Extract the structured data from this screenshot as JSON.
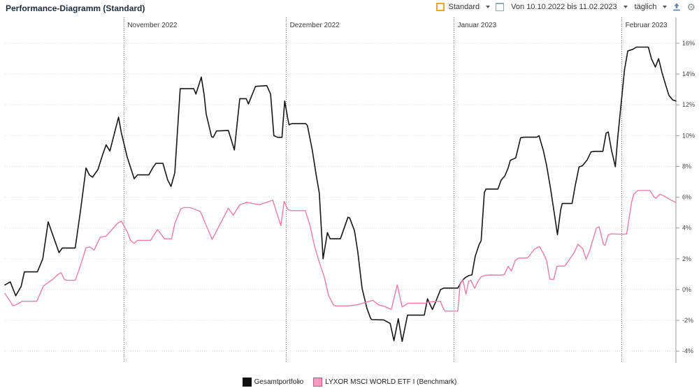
{
  "header": {
    "title": "Performance-Diagramm (Standard)"
  },
  "toolbar": {
    "view": {
      "label": "Standard",
      "icon": "orange-square-icon",
      "icon_color": "#eea32c"
    },
    "window_button": {
      "icon": "window-icon",
      "color": "#97a4b3"
    },
    "date_range": {
      "label": "Von 10.10.2022 bis 11.02.2023"
    },
    "interval": {
      "label": "täglich"
    },
    "export_button": {
      "icon": "upload-icon",
      "color": "#6285a8"
    },
    "settings_button": {
      "icon": "gear-icon",
      "glyph": "⚙",
      "color": "#8a9199"
    }
  },
  "legend": {
    "items": [
      {
        "label": "Gesamtportfolio",
        "fill": "#111111",
        "border": "#111111"
      },
      {
        "label": "LYXOR MSCI WORLD ETF I (Benchmark)",
        "fill": "#f19cbf",
        "border": "#c75687"
      }
    ]
  },
  "chart_data": {
    "type": "line",
    "title": "Performance-Diagramm (Standard)",
    "x_axis": {
      "start_date": "10.10.2022",
      "end_date": "11.02.2023",
      "unit": "Tage",
      "total_days": 124,
      "month_markers": [
        {
          "label": "November 2022",
          "day": 22
        },
        {
          "label": "Dezember 2022",
          "day": 52
        },
        {
          "label": "Januar 2023",
          "day": 83
        },
        {
          "label": "Februar 2023",
          "day": 114
        }
      ]
    },
    "y_axis": {
      "min": -4,
      "max": 16,
      "step": 2,
      "suffix": "%",
      "tick_labels": [
        "16%",
        "14%",
        "12%",
        "10%",
        "8%",
        "6%",
        "4%",
        "2%",
        "0%",
        "-2%",
        "-4%"
      ]
    },
    "grid": true,
    "legend_position": "bottom",
    "series": [
      {
        "id": "gesamtportfolio",
        "name": "Gesamtportfolio",
        "color": "#161616",
        "width": 1.6,
        "points": [
          [
            0,
            0.3
          ],
          [
            1,
            0.5
          ],
          [
            2,
            -0.4
          ],
          [
            3,
            0.2
          ],
          [
            3.6,
            1.15
          ],
          [
            6,
            1.15
          ],
          [
            7,
            2.0
          ],
          [
            8,
            4.4
          ],
          [
            9,
            3.4
          ],
          [
            10,
            2.4
          ],
          [
            10.6,
            2.7
          ],
          [
            13,
            2.7
          ],
          [
            14,
            5.2
          ],
          [
            15,
            7.9
          ],
          [
            15.6,
            7.45
          ],
          [
            16.2,
            7.3
          ],
          [
            17.2,
            7.8
          ],
          [
            18.1,
            8.8
          ],
          [
            18.7,
            9.4
          ],
          [
            19.4,
            9.0
          ],
          [
            21,
            11.2
          ],
          [
            21.5,
            10.2
          ],
          [
            22.6,
            8.6
          ],
          [
            23.9,
            7.2
          ],
          [
            24.5,
            7.45
          ],
          [
            26.6,
            7.45
          ],
          [
            27.3,
            7.9
          ],
          [
            27.9,
            8.2
          ],
          [
            29.2,
            8.2
          ],
          [
            30.1,
            7.1
          ],
          [
            30.7,
            6.7
          ],
          [
            31.4,
            7.6
          ],
          [
            32.4,
            13.05
          ],
          [
            34.9,
            13.05
          ],
          [
            35.3,
            12.7
          ],
          [
            36.3,
            13.8
          ],
          [
            36.8,
            12.7
          ],
          [
            37.2,
            11.4
          ],
          [
            38.2,
            9.93
          ],
          [
            38.5,
            9.89
          ],
          [
            39.1,
            10.3
          ],
          [
            41.3,
            10.34
          ],
          [
            42.4,
            9.07
          ],
          [
            43.4,
            12.4
          ],
          [
            44.6,
            12.4
          ],
          [
            45,
            12.06
          ],
          [
            46.3,
            13.2
          ],
          [
            48.4,
            13.25
          ],
          [
            49.1,
            12.7
          ],
          [
            49.7,
            10.0
          ],
          [
            50.4,
            9.89
          ],
          [
            51.2,
            9.89
          ],
          [
            51.7,
            12.25
          ],
          [
            52.3,
            11.06
          ],
          [
            52.5,
            10.7
          ],
          [
            53,
            10.78
          ],
          [
            55.6,
            10.78
          ],
          [
            55.9,
            10.65
          ],
          [
            56.8,
            9.07
          ],
          [
            57.5,
            7.48
          ],
          [
            58.1,
            6.27
          ],
          [
            58.8,
            2.0
          ],
          [
            59.6,
            3.7
          ],
          [
            60.1,
            3.3
          ],
          [
            62,
            3.3
          ],
          [
            63.4,
            4.7
          ],
          [
            63.7,
            4.66
          ],
          [
            64.6,
            3.83
          ],
          [
            65.2,
            2.47
          ],
          [
            66,
            0.08
          ],
          [
            66.9,
            -1.21
          ],
          [
            67.6,
            -1.89
          ],
          [
            67.8,
            -1.95
          ],
          [
            70,
            -1.97
          ],
          [
            71.2,
            -2.2
          ],
          [
            71.9,
            -3.32
          ],
          [
            72.7,
            -1.89
          ],
          [
            73.4,
            -3.37
          ],
          [
            74.4,
            -1.66
          ],
          [
            77.5,
            -1.66
          ],
          [
            78.1,
            -0.6
          ],
          [
            79,
            -1.3
          ],
          [
            79.6,
            -0.8
          ],
          [
            80.5,
            0.0
          ],
          [
            81.1,
            0.1
          ],
          [
            83.7,
            0.1
          ],
          [
            84.4,
            0.53
          ],
          [
            85,
            0.76
          ],
          [
            85.7,
            0.91
          ],
          [
            86.3,
            0.95
          ],
          [
            86.9,
            2.15
          ],
          [
            87.6,
            2.9
          ],
          [
            88,
            3.17
          ],
          [
            88.6,
            6.3
          ],
          [
            88.9,
            6.53
          ],
          [
            91.1,
            6.53
          ],
          [
            91.7,
            7.1
          ],
          [
            92.4,
            7.4
          ],
          [
            93,
            7.9
          ],
          [
            93.4,
            8.4
          ],
          [
            94.4,
            8.55
          ],
          [
            95.3,
            9.86
          ],
          [
            96,
            9.9
          ],
          [
            98.3,
            9.9
          ],
          [
            98.7,
            10.0
          ],
          [
            99.5,
            9.04
          ],
          [
            100.1,
            8.06
          ],
          [
            100.8,
            6.62
          ],
          [
            101.4,
            5.25
          ],
          [
            102.1,
            3.57
          ],
          [
            102.7,
            5.18
          ],
          [
            103,
            5.59
          ],
          [
            104.8,
            5.59
          ],
          [
            105.4,
            6.77
          ],
          [
            106.1,
            7.97
          ],
          [
            106.7,
            8.04
          ],
          [
            107.6,
            8.42
          ],
          [
            108.3,
            8.94
          ],
          [
            108.9,
            8.98
          ],
          [
            110.5,
            8.98
          ],
          [
            111.1,
            10.16
          ],
          [
            111.5,
            10.24
          ],
          [
            112.1,
            9.04
          ],
          [
            112.8,
            7.98
          ],
          [
            113.2,
            9.7
          ],
          [
            113.7,
            11.5
          ],
          [
            114.5,
            14.3
          ],
          [
            115.1,
            15.5
          ],
          [
            116,
            15.6
          ],
          [
            116.7,
            15.75
          ],
          [
            118.9,
            15.75
          ],
          [
            119.5,
            14.96
          ],
          [
            120.2,
            14.46
          ],
          [
            120.8,
            15.0
          ],
          [
            121.4,
            14.13
          ],
          [
            122.1,
            13.3
          ],
          [
            122.7,
            12.62
          ],
          [
            123.4,
            12.32
          ],
          [
            124,
            12.25
          ]
        ]
      },
      {
        "id": "benchmark",
        "name": "LYXOR MSCI WORLD ETF I (Benchmark)",
        "color": "#e87da9",
        "width": 1.4,
        "points": [
          [
            0,
            -0.25
          ],
          [
            1.5,
            -1.05
          ],
          [
            2.3,
            -0.95
          ],
          [
            3.2,
            -0.76
          ],
          [
            5.9,
            -0.76
          ],
          [
            7.1,
            0.23
          ],
          [
            7.7,
            0.38
          ],
          [
            8.8,
            0.65
          ],
          [
            9.9,
            1.01
          ],
          [
            10.4,
            1.09
          ],
          [
            11,
            0.65
          ],
          [
            11.4,
            0.6
          ],
          [
            13,
            0.6
          ],
          [
            13.7,
            1.28
          ],
          [
            15,
            2.72
          ],
          [
            15.7,
            2.77
          ],
          [
            16.5,
            2.57
          ],
          [
            17.6,
            3.4
          ],
          [
            18.7,
            3.47
          ],
          [
            20.8,
            4.3
          ],
          [
            21.5,
            4.45
          ],
          [
            22.6,
            3.77
          ],
          [
            23.2,
            3.2
          ],
          [
            23.9,
            3.0
          ],
          [
            24.5,
            3.2
          ],
          [
            26.9,
            3.2
          ],
          [
            28.2,
            3.9
          ],
          [
            29.5,
            3.3
          ],
          [
            30.8,
            3.3
          ],
          [
            31.4,
            4.3
          ],
          [
            32.5,
            5.24
          ],
          [
            33.1,
            5.33
          ],
          [
            34.2,
            5.33
          ],
          [
            36.1,
            5.08
          ],
          [
            38.3,
            3.26
          ],
          [
            39.4,
            4.0
          ],
          [
            41.3,
            5.29
          ],
          [
            42.2,
            4.83
          ],
          [
            43.4,
            5.51
          ],
          [
            44.7,
            5.66
          ],
          [
            47.1,
            5.51
          ],
          [
            49.5,
            5.81
          ],
          [
            50.3,
            4.91
          ],
          [
            51,
            4.15
          ],
          [
            51.6,
            5.73
          ],
          [
            52.3,
            5.2
          ],
          [
            52.9,
            5.13
          ],
          [
            55.5,
            5.13
          ],
          [
            56.4,
            4.15
          ],
          [
            57.2,
            2.85
          ],
          [
            58.1,
            1.78
          ],
          [
            59,
            0.83
          ],
          [
            59.8,
            -0.38
          ],
          [
            60.7,
            -0.98
          ],
          [
            61.1,
            -1.06
          ],
          [
            63.5,
            -1.06
          ],
          [
            65,
            -1.0
          ],
          [
            66.5,
            -0.85
          ],
          [
            68,
            -0.7
          ],
          [
            69,
            -0.98
          ],
          [
            70.2,
            -1.1
          ],
          [
            71.4,
            -1.29
          ],
          [
            72.5,
            0.3
          ],
          [
            73.4,
            -1.13
          ],
          [
            74.4,
            -0.91
          ],
          [
            74.7,
            -0.88
          ],
          [
            77.8,
            -0.88
          ],
          [
            78.5,
            -0.8
          ],
          [
            80.5,
            -0.76
          ],
          [
            80.9,
            -1.13
          ],
          [
            81.3,
            -1.4
          ],
          [
            83.7,
            -1.4
          ],
          [
            84.1,
            0.3
          ],
          [
            84.6,
            0.68
          ],
          [
            85.2,
            -0.3
          ],
          [
            85.7,
            0.53
          ],
          [
            86.1,
            0.6
          ],
          [
            86.8,
            0.08
          ],
          [
            87.4,
            0.53
          ],
          [
            88,
            0.83
          ],
          [
            88.6,
            0.91
          ],
          [
            89.5,
            0.95
          ],
          [
            91.7,
            0.94
          ],
          [
            92.3,
            0.98
          ],
          [
            93,
            1.51
          ],
          [
            93.6,
            1.21
          ],
          [
            94.3,
            1.89
          ],
          [
            94.9,
            2.04
          ],
          [
            96.6,
            2.06
          ],
          [
            97.9,
            2.64
          ],
          [
            98.8,
            2.79
          ],
          [
            99.4,
            2.42
          ],
          [
            100.1,
            1.89
          ],
          [
            100.7,
            0.68
          ],
          [
            101.4,
            0.65
          ],
          [
            102,
            1.51
          ],
          [
            103.5,
            1.54
          ],
          [
            105.2,
            2.42
          ],
          [
            105.9,
            2.95
          ],
          [
            106.8,
            2.64
          ],
          [
            107.4,
            1.96
          ],
          [
            108.1,
            2.57
          ],
          [
            109.3,
            4.0
          ],
          [
            109.8,
            4.08
          ],
          [
            110.6,
            2.95
          ],
          [
            110.9,
            2.87
          ],
          [
            111.5,
            3.55
          ],
          [
            112.1,
            3.62
          ],
          [
            114.3,
            3.59
          ],
          [
            114.9,
            3.62
          ],
          [
            115.4,
            4.75
          ],
          [
            115.8,
            5.66
          ],
          [
            116.2,
            6.19
          ],
          [
            116.9,
            6.42
          ],
          [
            117.1,
            6.44
          ],
          [
            119.2,
            6.44
          ],
          [
            119.9,
            6.03
          ],
          [
            120.3,
            5.93
          ],
          [
            121,
            6.19
          ],
          [
            121.6,
            6.12
          ],
          [
            123.1,
            5.81
          ],
          [
            124,
            5.66
          ]
        ]
      }
    ]
  }
}
